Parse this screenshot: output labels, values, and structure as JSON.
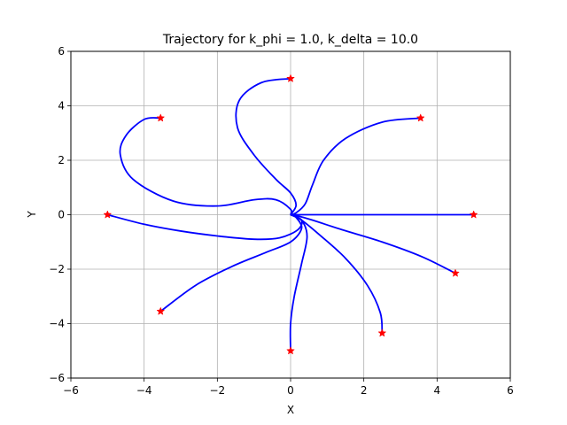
{
  "chart_data": {
    "type": "line",
    "title": "Trajectory for k_phi = 1.0, k_delta = 10.0",
    "xlabel": "X",
    "ylabel": "Y",
    "xlim": [
      -6,
      6
    ],
    "ylim": [
      -6,
      6
    ],
    "xticks": [
      -6,
      -4,
      -2,
      0,
      2,
      4,
      6
    ],
    "yticks": [
      -6,
      -4,
      -2,
      0,
      2,
      4,
      6
    ],
    "grid": true,
    "line_color": "#0000ff",
    "marker_color": "#ff0000",
    "goal": [
      0,
      0
    ],
    "series": [
      {
        "start": [
          5.0,
          0.0
        ],
        "points": [
          [
            5.0,
            0.0
          ],
          [
            3.5,
            0.0
          ],
          [
            2.0,
            0.0
          ],
          [
            1.0,
            0.0
          ],
          [
            0.3,
            0.0
          ],
          [
            0.0,
            0.0
          ]
        ]
      },
      {
        "start": [
          4.5,
          -2.15
        ],
        "points": [
          [
            4.5,
            -2.15
          ],
          [
            3.6,
            -1.55
          ],
          [
            2.5,
            -1.0
          ],
          [
            1.4,
            -0.55
          ],
          [
            0.6,
            -0.2
          ],
          [
            0.15,
            -0.03
          ],
          [
            0.0,
            0.0
          ]
        ]
      },
      {
        "start": [
          2.5,
          -4.35
        ],
        "points": [
          [
            2.5,
            -4.35
          ],
          [
            2.45,
            -3.6
          ],
          [
            2.1,
            -2.6
          ],
          [
            1.5,
            -1.6
          ],
          [
            0.8,
            -0.75
          ],
          [
            0.3,
            -0.2
          ],
          [
            0.0,
            0.0
          ]
        ]
      },
      {
        "start": [
          0.0,
          -5.0
        ],
        "points": [
          [
            0.0,
            -5.0
          ],
          [
            0.0,
            -4.0
          ],
          [
            0.1,
            -3.0
          ],
          [
            0.3,
            -1.8
          ],
          [
            0.45,
            -0.8
          ],
          [
            0.3,
            -0.2
          ],
          [
            0.0,
            0.0
          ]
        ]
      },
      {
        "start": [
          -3.55,
          -3.55
        ],
        "points": [
          [
            -3.55,
            -3.55
          ],
          [
            -2.6,
            -2.6
          ],
          [
            -1.6,
            -1.9
          ],
          [
            -0.7,
            -1.4
          ],
          [
            0.0,
            -1.0
          ],
          [
            0.3,
            -0.5
          ],
          [
            0.15,
            -0.1
          ],
          [
            0.0,
            0.0
          ]
        ]
      },
      {
        "start": [
          -5.0,
          0.0
        ],
        "points": [
          [
            -5.0,
            0.0
          ],
          [
            -4.0,
            -0.35
          ],
          [
            -3.0,
            -0.6
          ],
          [
            -2.0,
            -0.78
          ],
          [
            -1.0,
            -0.9
          ],
          [
            -0.3,
            -0.85
          ],
          [
            0.2,
            -0.55
          ],
          [
            0.3,
            -0.2
          ],
          [
            0.0,
            0.0
          ]
        ]
      },
      {
        "start": [
          -3.55,
          3.55
        ],
        "points": [
          [
            -3.55,
            3.55
          ],
          [
            -4.0,
            3.5
          ],
          [
            -4.5,
            2.9
          ],
          [
            -4.65,
            2.2
          ],
          [
            -4.3,
            1.3
          ],
          [
            -3.2,
            0.5
          ],
          [
            -2.0,
            0.32
          ],
          [
            -1.0,
            0.55
          ],
          [
            -0.4,
            0.55
          ],
          [
            0.0,
            0.2
          ],
          [
            0.0,
            0.0
          ]
        ]
      },
      {
        "start": [
          0.0,
          5.0
        ],
        "points": [
          [
            0.0,
            5.0
          ],
          [
            -0.8,
            4.85
          ],
          [
            -1.4,
            4.2
          ],
          [
            -1.45,
            3.2
          ],
          [
            -1.0,
            2.2
          ],
          [
            -0.4,
            1.3
          ],
          [
            0.0,
            0.8
          ],
          [
            0.15,
            0.35
          ],
          [
            0.0,
            0.0
          ]
        ]
      },
      {
        "start": [
          3.55,
          3.55
        ],
        "points": [
          [
            3.55,
            3.55
          ],
          [
            2.5,
            3.4
          ],
          [
            1.5,
            2.8
          ],
          [
            0.9,
            2.0
          ],
          [
            0.6,
            1.1
          ],
          [
            0.4,
            0.4
          ],
          [
            0.15,
            0.07
          ],
          [
            0.0,
            0.0
          ]
        ]
      }
    ]
  }
}
